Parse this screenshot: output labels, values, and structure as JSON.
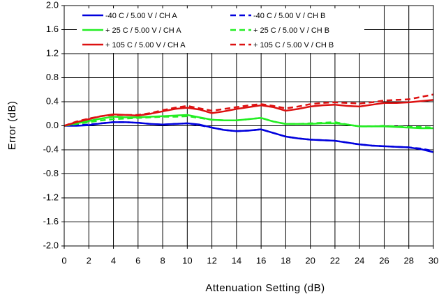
{
  "chart_data": {
    "type": "line",
    "xlabel": "Attenuation Setting (dB)",
    "ylabel": "Error (dB)",
    "x": [
      0,
      1,
      2,
      3,
      4,
      5,
      6,
      7,
      8,
      9,
      10,
      11,
      12,
      13,
      14,
      15,
      16,
      17,
      18,
      19,
      20,
      21,
      22,
      23,
      24,
      25,
      26,
      27,
      28,
      29,
      30
    ],
    "series": [
      {
        "name": "-40 C  /  5.00 V /  CH A",
        "color": "#0000dd",
        "line_style": "solid",
        "values": [
          0,
          0,
          0.01,
          0.04,
          0.06,
          0.06,
          0.05,
          0.03,
          0.02,
          0.03,
          0.04,
          0.02,
          -0.03,
          -0.07,
          -0.09,
          -0.08,
          -0.06,
          -0.12,
          -0.18,
          -0.21,
          -0.23,
          -0.24,
          -0.25,
          -0.28,
          -0.31,
          -0.33,
          -0.34,
          -0.35,
          -0.36,
          -0.39,
          -0.44
        ]
      },
      {
        "name": "-40 C  /  5.00 V /  CH B",
        "color": "#0000dd",
        "line_style": "dashed",
        "values": [
          0,
          0.01,
          0.02,
          0.04,
          0.06,
          0.06,
          0.05,
          0.03,
          0.02,
          0.03,
          0.04,
          0.01,
          -0.03,
          -0.07,
          -0.09,
          -0.08,
          -0.06,
          -0.12,
          -0.18,
          -0.21,
          -0.23,
          -0.24,
          -0.25,
          -0.28,
          -0.31,
          -0.33,
          -0.34,
          -0.35,
          -0.36,
          -0.38,
          -0.42
        ]
      },
      {
        "name": "+ 25 C  /  5.00 V /  CH A",
        "color": "#22ee22",
        "line_style": "solid",
        "values": [
          0,
          0.04,
          0.08,
          0.12,
          0.15,
          0.14,
          0.14,
          0.15,
          0.16,
          0.17,
          0.18,
          0.14,
          0.1,
          0.09,
          0.09,
          0.11,
          0.13,
          0.07,
          0.03,
          0.03,
          0.03,
          0.04,
          0.04,
          0.02,
          -0.01,
          -0.01,
          -0.01,
          -0.02,
          -0.03,
          -0.04,
          -0.04
        ]
      },
      {
        "name": "+ 25 C  /  5.00 V /  CH B",
        "color": "#22ee22",
        "line_style": "dashed",
        "values": [
          0,
          0.03,
          0.06,
          0.09,
          0.11,
          0.12,
          0.13,
          0.14,
          0.15,
          0.15,
          0.16,
          0.13,
          0.1,
          0.09,
          0.09,
          0.11,
          0.13,
          0.07,
          0.03,
          0.03,
          0.04,
          0.05,
          0.06,
          0.02,
          -0.01,
          -0.01,
          0,
          -0.01,
          -0.02,
          -0.02,
          -0.03
        ]
      },
      {
        "name": "+ 105 C  /  5.00 V /  CH A",
        "color": "#dd1111",
        "line_style": "solid",
        "values": [
          0,
          0.06,
          0.11,
          0.16,
          0.19,
          0.18,
          0.17,
          0.2,
          0.24,
          0.28,
          0.3,
          0.27,
          0.21,
          0.24,
          0.28,
          0.31,
          0.34,
          0.31,
          0.25,
          0.28,
          0.32,
          0.34,
          0.35,
          0.33,
          0.32,
          0.35,
          0.38,
          0.38,
          0.39,
          0.41,
          0.43
        ]
      },
      {
        "name": "+ 105 C  /  5.00 V /  CH B",
        "color": "#dd1111",
        "line_style": "dashed",
        "values": [
          0,
          0.07,
          0.12,
          0.16,
          0.18,
          0.18,
          0.18,
          0.21,
          0.26,
          0.3,
          0.33,
          0.29,
          0.25,
          0.28,
          0.31,
          0.34,
          0.36,
          0.33,
          0.29,
          0.32,
          0.36,
          0.38,
          0.39,
          0.38,
          0.37,
          0.39,
          0.42,
          0.43,
          0.44,
          0.48,
          0.52
        ]
      }
    ],
    "xlim": [
      0,
      30
    ],
    "xticks": [
      0,
      2,
      4,
      6,
      8,
      10,
      12,
      14,
      16,
      18,
      20,
      22,
      24,
      26,
      28,
      30
    ],
    "ylim": [
      -2,
      2
    ],
    "yticks": [
      {
        "value": -2,
        "label": "-2.0"
      },
      -1.6,
      -1.2,
      -0.8,
      -0.4,
      {
        "value": 0,
        "label": "0.0"
      },
      0.4,
      0.8,
      1.2,
      1.6,
      {
        "value": 2,
        "label": "2.0"
      }
    ],
    "grid": true,
    "legend": "top"
  }
}
